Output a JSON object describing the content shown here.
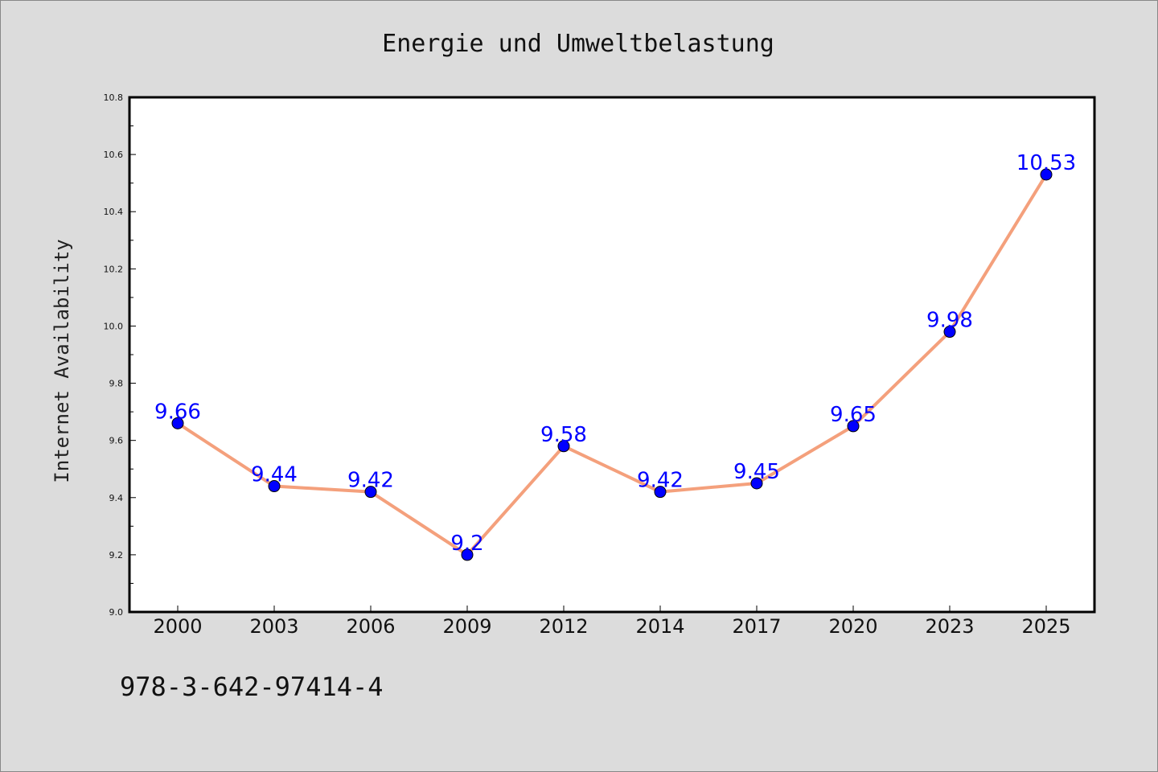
{
  "footer": {
    "isbn": "978-3-642-97414-4"
  },
  "colors": {
    "background": "#dcdcdc",
    "plot_background": "#ffffff",
    "line": "#f4a07c",
    "marker": "#0000ff",
    "data_label": "#0000ff"
  },
  "chart_data": {
    "type": "line",
    "title": "Energie und Umweltbelastung",
    "xlabel": "",
    "ylabel": "Internet Availability",
    "categories": [
      "2000",
      "2003",
      "2006",
      "2009",
      "2012",
      "2014",
      "2017",
      "2020",
      "2023",
      "2025"
    ],
    "series": [
      {
        "values": [
          9.66,
          9.44,
          9.42,
          9.2,
          9.58,
          9.42,
          9.45,
          9.65,
          9.98,
          10.53
        ]
      }
    ],
    "data_labels": [
      "9.66",
      "9.44",
      "9.42",
      "9.2",
      "9.58",
      "9.42",
      "9.45",
      "9.65",
      "9.98",
      "10.53"
    ],
    "ylim": [
      9.0,
      10.8
    ],
    "yticks": [
      "9.0",
      "9.2",
      "9.4",
      "9.6",
      "9.8",
      "10.0",
      "10.2",
      "10.4",
      "10.6",
      "10.8"
    ],
    "grid": false,
    "legend": "none"
  }
}
